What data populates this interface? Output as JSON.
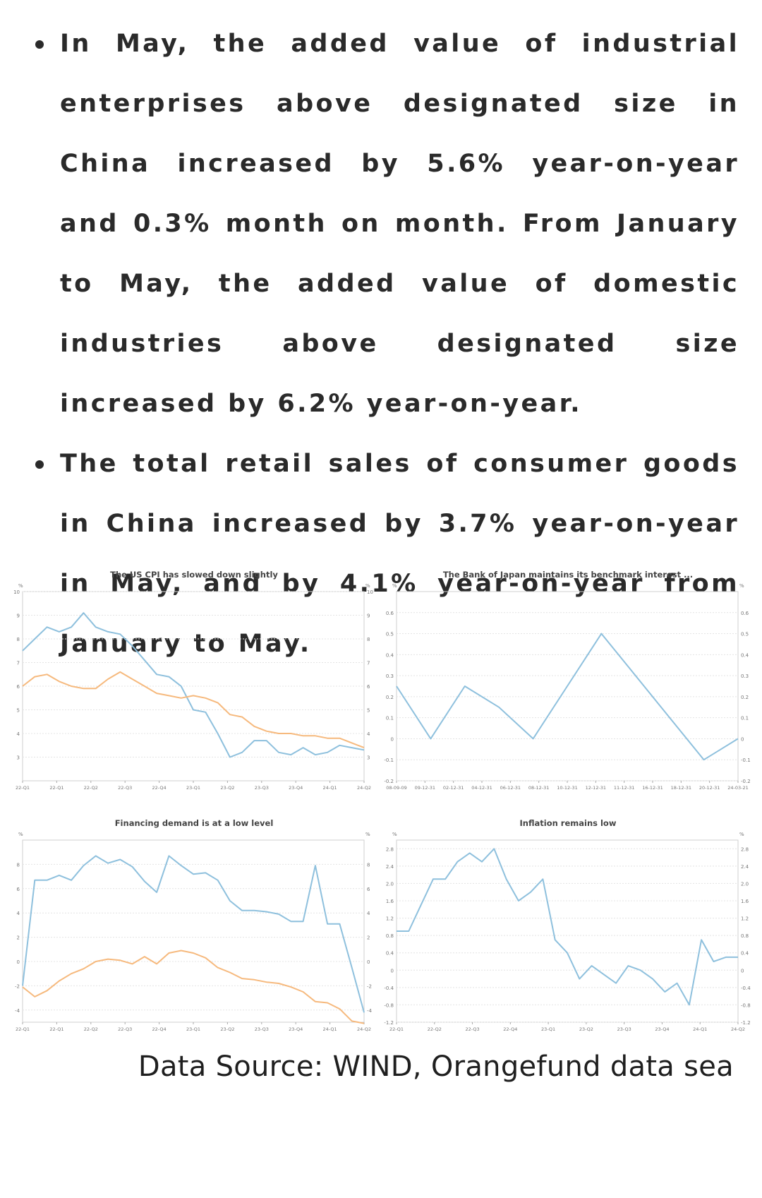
{
  "bullets": [
    "In May, the added value of industrial enterprises above designated size in China increased by 5.6% year-on-year and 0.3% month on month. From January to May, the added value of domestic industries above designated size increased by 6.2% year-on-year.",
    "The total retail sales of consumer goods in China increased by 3.7% year-on-year in May, and by 4.1% year-on-year from January to May."
  ],
  "source": "Data Source: WIND, Orangefund data sea",
  "colors": {
    "blue": "#8ec0dd",
    "orange": "#f6b97d",
    "grid": "#e4e4e4",
    "axis": "#888888"
  },
  "chart_data": [
    {
      "type": "line",
      "title": "The US CPI has slowed down slightly",
      "ylim": [
        2,
        10
      ],
      "yticks": [
        "3",
        "4",
        "5",
        "6",
        "7",
        "8",
        "9",
        "10"
      ],
      "xticks": [
        "22-Q1",
        "22-Q1",
        "22-Q2",
        "22-Q3",
        "22-Q4",
        "23-Q1",
        "23-Q2",
        "23-Q3",
        "23-Q4",
        "24-Q1",
        "24-Q2"
      ],
      "series": [
        {
          "color": "#8ec0dd",
          "values": [
            7.5,
            8.0,
            8.5,
            8.3,
            8.5,
            9.1,
            8.5,
            8.3,
            8.2,
            7.7,
            7.1,
            6.5,
            6.4,
            6.0,
            5.0,
            4.9,
            4.0,
            3.0,
            3.2,
            3.7,
            3.7,
            3.2,
            3.1,
            3.4,
            3.1,
            3.2,
            3.5,
            3.4,
            3.3
          ]
        },
        {
          "color": "#f6b97d",
          "values": [
            6.0,
            6.4,
            6.5,
            6.2,
            6.0,
            5.9,
            5.9,
            6.3,
            6.6,
            6.3,
            6.0,
            5.7,
            5.6,
            5.5,
            5.6,
            5.5,
            5.3,
            4.8,
            4.7,
            4.3,
            4.1,
            4.0,
            4.0,
            3.9,
            3.9,
            3.8,
            3.8,
            3.6,
            3.4
          ]
        }
      ]
    },
    {
      "type": "line",
      "title": "The Bank of Japan maintains its benchmark interest ...",
      "ylim": [
        -0.2,
        0.7
      ],
      "yticks": [
        "-0.2",
        "-0.1",
        "0",
        "0.1",
        "0.2",
        "0.3",
        "0.4",
        "0.5",
        "0.6"
      ],
      "xticks": [
        "08-09-09",
        "09-12-31",
        "02-12-31",
        "04-12-31",
        "06-12-31",
        "08-12-31",
        "10-12-31",
        "12-12-31",
        "11-12-31",
        "16-12-31",
        "18-12-31",
        "20-12-31",
        "24-03-21"
      ],
      "series": [
        {
          "color": "#8ec0dd",
          "values": [
            0.25,
            0.0,
            0.25,
            0.15,
            0.0,
            0.25,
            0.5,
            0.3,
            0.1,
            -0.1,
            0.0
          ]
        }
      ]
    },
    {
      "type": "line",
      "title": "Financing demand is at a low level",
      "ylim": [
        -5,
        10
      ],
      "yticks": [
        "-4",
        "-2",
        "0",
        "2",
        "4",
        "6",
        "8"
      ],
      "xticks": [
        "22-Q1",
        "22-Q1",
        "22-Q2",
        "22-Q3",
        "22-Q4",
        "23-Q1",
        "23-Q2",
        "23-Q3",
        "23-Q4",
        "24-Q1",
        "24-Q2"
      ],
      "series": [
        {
          "color": "#8ec0dd",
          "values": [
            -2,
            6.7,
            6.7,
            7.1,
            6.7,
            7.9,
            8.7,
            8.1,
            8.4,
            7.8,
            6.6,
            5.7,
            8.7,
            7.9,
            7.2,
            7.3,
            6.7,
            5.0,
            4.2,
            4.2,
            4.1,
            3.9,
            3.3,
            3.3,
            7.9,
            3.1,
            3.1,
            -0.5,
            -4.2
          ]
        },
        {
          "color": "#f6b97d",
          "values": [
            -2.1,
            -2.9,
            -2.4,
            -1.6,
            -1.0,
            -0.6,
            0.0,
            0.2,
            0.1,
            -0.2,
            0.4,
            -0.2,
            0.7,
            0.9,
            0.7,
            0.3,
            -0.5,
            -0.9,
            -1.4,
            -1.5,
            -1.7,
            -1.8,
            -2.1,
            -2.5,
            -3.3,
            -3.4,
            -3.9,
            -4.9,
            -5.1
          ]
        }
      ]
    },
    {
      "type": "line",
      "title": "Inflation remains low",
      "ylim": [
        -1.2,
        3.0
      ],
      "yticks": [
        "-1.2",
        "-0.8",
        "-0.4",
        "0",
        "0.4",
        "0.8",
        "1.2",
        "1.6",
        "2.0",
        "2.4",
        "2.8"
      ],
      "xticks": [
        "22-Q1",
        "22-Q2",
        "22-Q3",
        "22-Q4",
        "23-Q1",
        "23-Q2",
        "23-Q3",
        "23-Q4",
        "24-Q1",
        "24-Q2"
      ],
      "series": [
        {
          "color": "#8ec0dd",
          "values": [
            0.9,
            0.9,
            1.5,
            2.1,
            2.1,
            2.5,
            2.7,
            2.5,
            2.8,
            2.1,
            1.6,
            1.8,
            2.1,
            0.7,
            0.4,
            -0.2,
            0.1,
            -0.1,
            -0.3,
            0.1,
            0.0,
            -0.2,
            -0.5,
            -0.3,
            -0.8,
            0.7,
            0.2,
            0.3,
            0.3
          ]
        }
      ]
    }
  ]
}
